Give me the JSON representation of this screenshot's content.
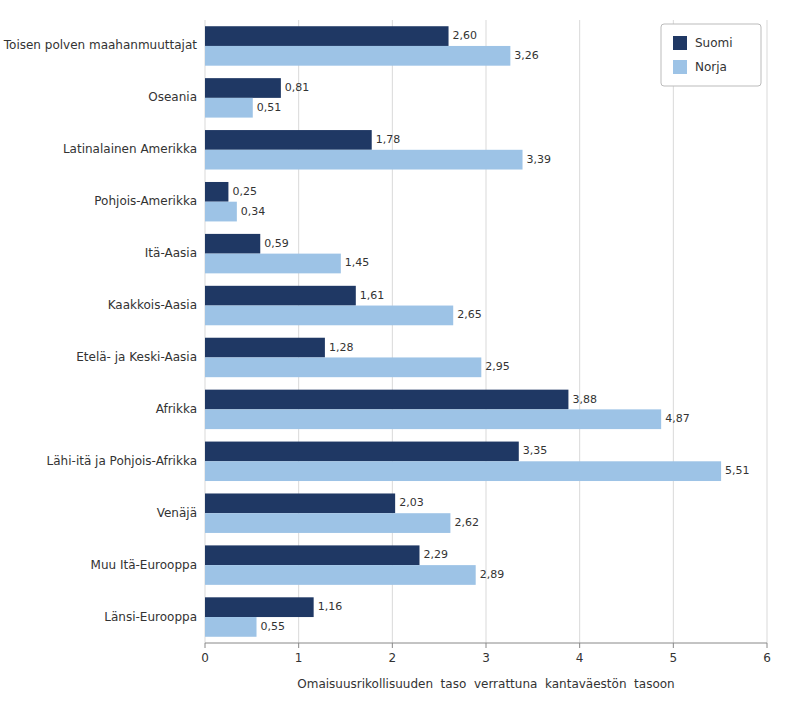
{
  "chart_data": {
    "type": "bar",
    "orientation": "horizontal",
    "categories": [
      "Toisen polven maahanmuuttajat",
      "Oseania",
      "Latinalainen Amerikka",
      "Pohjois-Amerikka",
      "Itä-Aasia",
      "Kaakkois-Aasia",
      "Etelä- ja Keski-Aasia",
      "Afrikka",
      "Lähi-itä ja Pohjois-Afrikka",
      "Venäjä",
      "Muu Itä-Eurooppa",
      "Länsi-Eurooppa"
    ],
    "series": [
      {
        "name": "Suomi",
        "color": "#1F3864",
        "values": [
          2.6,
          0.81,
          1.78,
          0.25,
          0.59,
          1.61,
          1.28,
          3.88,
          3.35,
          2.03,
          2.29,
          1.16
        ],
        "value_labels": [
          "2,60",
          "0,81",
          "1,78",
          "0,25",
          "0,59",
          "1,61",
          "1,28",
          "3,88",
          "3,35",
          "2,03",
          "2,29",
          "1,16"
        ]
      },
      {
        "name": "Norja",
        "color": "#9DC3E6",
        "values": [
          3.26,
          0.51,
          3.39,
          0.34,
          1.45,
          2.65,
          2.95,
          4.87,
          5.51,
          2.62,
          2.89,
          0.55
        ],
        "value_labels": [
          "3,26",
          "0,51",
          "3,39",
          "0,34",
          "1,45",
          "2,65",
          "2,95",
          "4,87",
          "5,51",
          "2,62",
          "2,89",
          "0,55"
        ]
      }
    ],
    "xlabel": "Omaisuusrikollisuuden  taso  verrattuna  kantaväestön  tasoon",
    "xlim": [
      0,
      6
    ],
    "xticks": [
      0,
      1,
      2,
      3,
      4,
      5,
      6
    ],
    "grid": true,
    "legend": "upper right",
    "data_labels": true
  }
}
